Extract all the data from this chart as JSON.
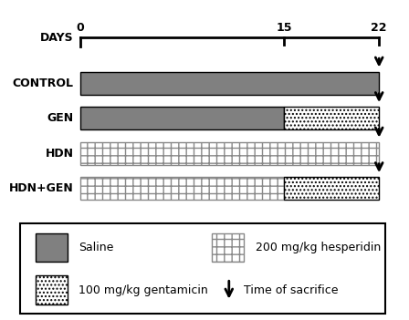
{
  "days_total": 22,
  "day_switch": 15,
  "groups": [
    "CONTROL",
    "GEN",
    "HDN",
    "HDN+GEN"
  ],
  "timeline_label": "DAYS",
  "day_labels": [
    "0",
    "15",
    "22"
  ],
  "saline_color": "#808080",
  "gentamicin_hatch": "....",
  "hesperidin_hatch": "++",
  "background_color": "#ffffff",
  "bar_height": 0.65,
  "saline_edge": "#000000",
  "hesperidin_edge": "#888888",
  "gentamicin_edge": "#000000",
  "legend_saline_label": "Saline",
  "legend_gent_label": "100 mg/kg gentamicin",
  "legend_hesp_label": "200 mg/kg hesperidin",
  "legend_sacr_label": "Time of sacrifice"
}
